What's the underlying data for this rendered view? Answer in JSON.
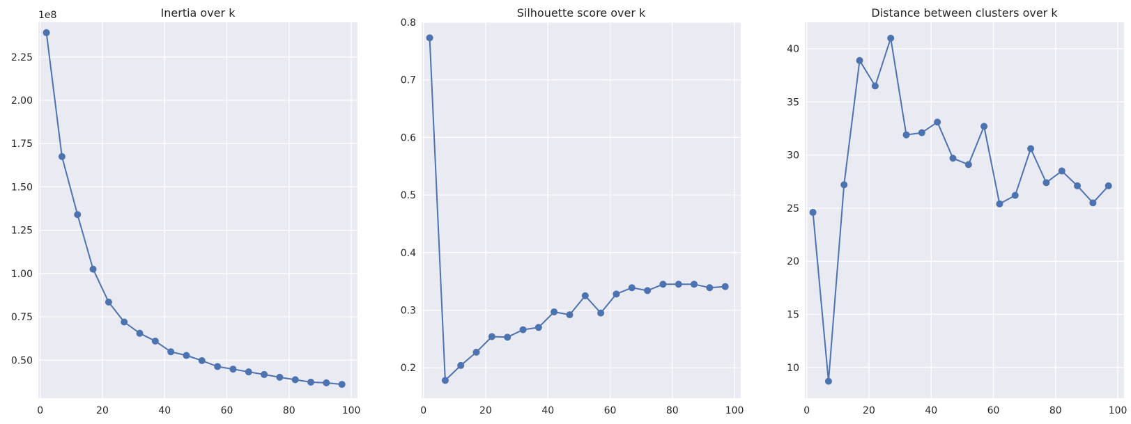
{
  "chart_data": [
    {
      "type": "line",
      "title": "Inertia over k",
      "xlabel": "",
      "ylabel": "",
      "offset_label": "1e8",
      "xlim": [
        -0.6,
        102
      ],
      "ylim": [
        0.28,
        2.45
      ],
      "xticks": [
        0,
        20,
        40,
        60,
        80,
        100
      ],
      "yticks": [
        0.5,
        0.75,
        1.0,
        1.25,
        1.5,
        1.75,
        2.0,
        2.25
      ],
      "ytick_labels": [
        "0.50",
        "0.75",
        "1.00",
        "1.25",
        "1.50",
        "1.75",
        "2.00",
        "2.25"
      ],
      "grid": true,
      "x": [
        2,
        7,
        12,
        17,
        22,
        27,
        32,
        37,
        42,
        47,
        52,
        57,
        62,
        67,
        72,
        77,
        82,
        87,
        92,
        97
      ],
      "series": [
        {
          "name": "",
          "color": "#4c72b0",
          "values": [
            2.39,
            1.675,
            1.34,
            1.025,
            0.835,
            0.72,
            0.655,
            0.61,
            0.548,
            0.527,
            0.497,
            0.463,
            0.448,
            0.432,
            0.417,
            0.401,
            0.387,
            0.373,
            0.369,
            0.36
          ]
        }
      ]
    },
    {
      "type": "line",
      "title": "Silhouette score over k",
      "xlabel": "",
      "ylabel": "",
      "xlim": [
        -0.6,
        102
      ],
      "ylim": [
        0.147,
        0.8
      ],
      "xticks": [
        0,
        20,
        40,
        60,
        80,
        100
      ],
      "yticks": [
        0.2,
        0.3,
        0.4,
        0.5,
        0.6,
        0.7,
        0.8
      ],
      "ytick_labels": [
        "0.2",
        "0.3",
        "0.4",
        "0.5",
        "0.6",
        "0.7",
        "0.8"
      ],
      "grid": true,
      "x": [
        2,
        7,
        12,
        17,
        22,
        27,
        32,
        37,
        42,
        47,
        52,
        57,
        62,
        67,
        72,
        77,
        82,
        87,
        92,
        97
      ],
      "series": [
        {
          "name": "",
          "color": "#4c72b0",
          "values": [
            0.773,
            0.178,
            0.204,
            0.227,
            0.254,
            0.253,
            0.266,
            0.27,
            0.297,
            0.292,
            0.325,
            0.295,
            0.328,
            0.339,
            0.334,
            0.345,
            0.345,
            0.345,
            0.339,
            0.341
          ]
        }
      ]
    },
    {
      "type": "line",
      "title": "Distance between clusters over k",
      "xlabel": "",
      "ylabel": "",
      "xlim": [
        -0.6,
        102
      ],
      "ylim": [
        7.1,
        42.5
      ],
      "xticks": [
        0,
        20,
        40,
        60,
        80,
        100
      ],
      "yticks": [
        10,
        15,
        20,
        25,
        30,
        35,
        40
      ],
      "ytick_labels": [
        "10",
        "15",
        "20",
        "25",
        "30",
        "35",
        "40"
      ],
      "grid": true,
      "x": [
        2,
        7,
        12,
        17,
        22,
        27,
        32,
        37,
        42,
        47,
        52,
        57,
        62,
        67,
        72,
        77,
        82,
        87,
        92,
        97
      ],
      "series": [
        {
          "name": "",
          "color": "#4c72b0",
          "values": [
            24.6,
            8.7,
            27.2,
            38.9,
            36.5,
            41.0,
            31.9,
            32.1,
            33.1,
            29.7,
            29.1,
            32.7,
            25.4,
            26.2,
            30.6,
            27.4,
            28.5,
            27.1,
            25.5,
            27.1
          ]
        }
      ]
    }
  ]
}
